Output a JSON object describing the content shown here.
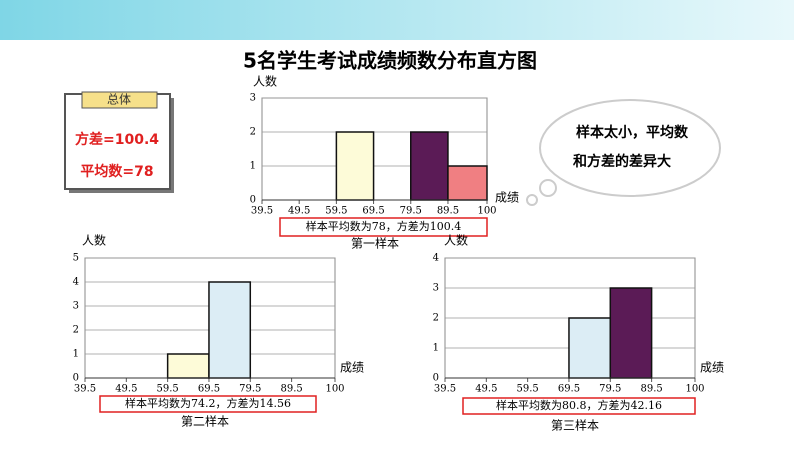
{
  "title": "5名学生考试成绩频数分布直方图",
  "summary_box": {
    "header": "总体",
    "lines": [
      "方差=100.4",
      "平均数=78"
    ]
  },
  "bubble": [
    "样本太小，平均数",
    "和方差的差异大"
  ],
  "chart_data": [
    {
      "type": "histogram",
      "name": "第一样本",
      "caption": "样本平均数为78，方差为100.4",
      "ylabel": "人数",
      "xlabel": "成绩",
      "bins": [
        39.5,
        49.5,
        59.5,
        69.5,
        79.5,
        89.5,
        100
      ],
      "counts": [
        0,
        0,
        2,
        0,
        2,
        1
      ],
      "colors": [
        null,
        null,
        "#fdfbd8",
        null,
        "#5b1b56",
        "#f07f82"
      ],
      "xlim": [
        39.5,
        100
      ],
      "xticks": [
        39.5,
        49.5,
        59.5,
        69.5,
        79.5,
        89.5,
        100
      ],
      "ylim": [
        0,
        3
      ],
      "yticks": [
        0,
        1,
        2,
        3
      ],
      "grid": true
    },
    {
      "type": "histogram",
      "name": "第二样本",
      "caption": "样本平均数为74.2，方差为14.56",
      "ylabel": "人数",
      "xlabel": "成绩",
      "bins": [
        39.5,
        49.5,
        59.5,
        69.5,
        79.5,
        89.5,
        100
      ],
      "counts": [
        0,
        0,
        1,
        4,
        0,
        0
      ],
      "colors": [
        null,
        null,
        "#fdfbd8",
        "#dcedf5",
        null,
        null
      ],
      "xlim": [
        39.5,
        100
      ],
      "xticks": [
        39.5,
        49.5,
        59.5,
        69.5,
        79.5,
        89.5,
        100
      ],
      "ylim": [
        0,
        5
      ],
      "yticks": [
        0,
        1,
        2,
        3,
        4,
        5
      ],
      "grid": true
    },
    {
      "type": "histogram",
      "name": "第三样本",
      "caption": "样本平均数为80.8，方差为42.16",
      "ylabel": "人数",
      "xlabel": "成绩",
      "bins": [
        39.5,
        49.5,
        59.5,
        69.5,
        79.5,
        89.5,
        100
      ],
      "counts": [
        0,
        0,
        0,
        2,
        3,
        0
      ],
      "colors": [
        null,
        null,
        null,
        "#dcedf5",
        "#5b1b56",
        null
      ],
      "xlim": [
        39.5,
        100
      ],
      "xticks": [
        39.5,
        49.5,
        59.5,
        69.5,
        79.5,
        89.5,
        100
      ],
      "ylim": [
        0,
        4
      ],
      "yticks": [
        0,
        1,
        2,
        3,
        4
      ],
      "grid": true
    }
  ]
}
